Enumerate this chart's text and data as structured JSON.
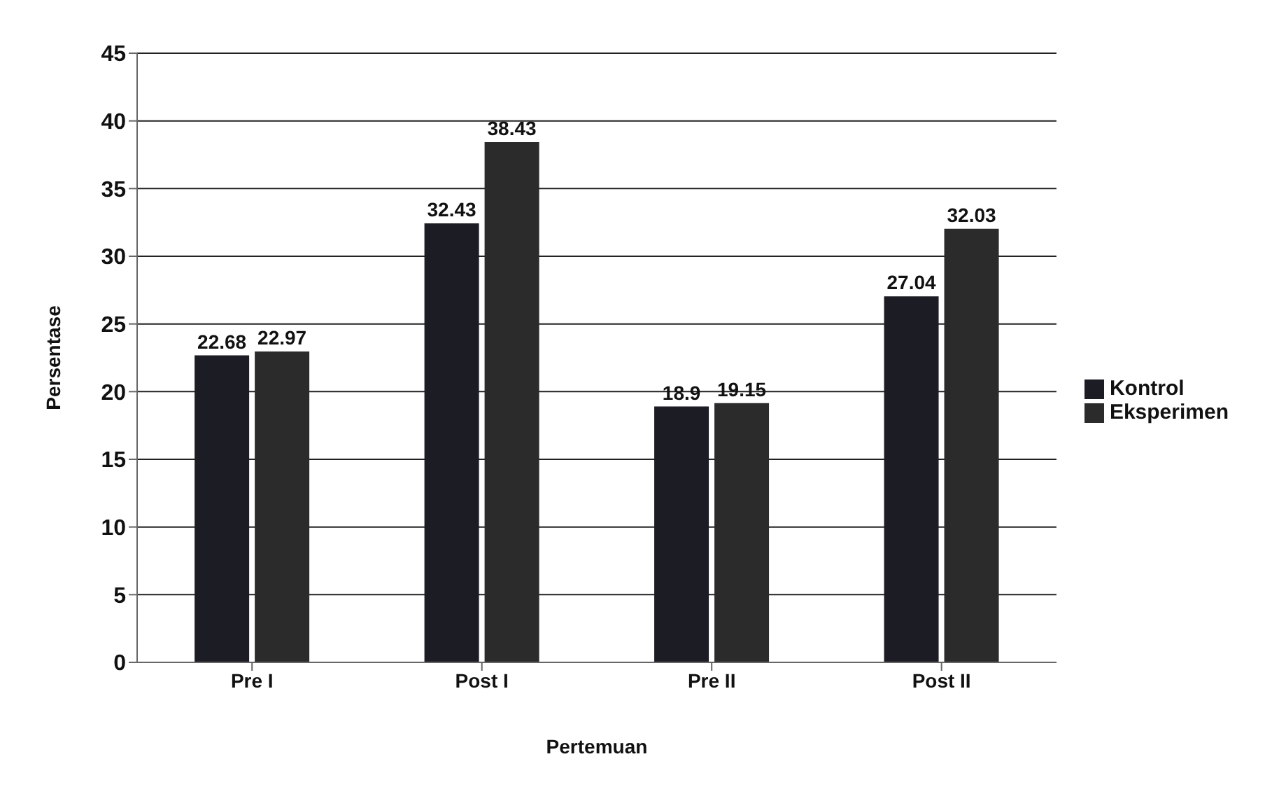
{
  "chart_data": {
    "type": "bar",
    "xlabel": "Pertemuan",
    "ylabel": "Persentase",
    "categories": [
      "Pre I",
      "Post I",
      "Pre II",
      "Post II"
    ],
    "series": [
      {
        "name": "Kontrol",
        "color": "#1c1c24",
        "values": [
          22.68,
          32.43,
          18.9,
          27.04
        ]
      },
      {
        "name": "Eksperimen",
        "color": "#2b2b2b",
        "values": [
          22.97,
          38.43,
          19.15,
          32.03
        ]
      }
    ],
    "ylim": [
      0,
      45
    ],
    "yticks": [
      0,
      5,
      10,
      15,
      20,
      25,
      30,
      35,
      40,
      45
    ],
    "grid": "y",
    "legend": "right",
    "data_labels": true
  }
}
